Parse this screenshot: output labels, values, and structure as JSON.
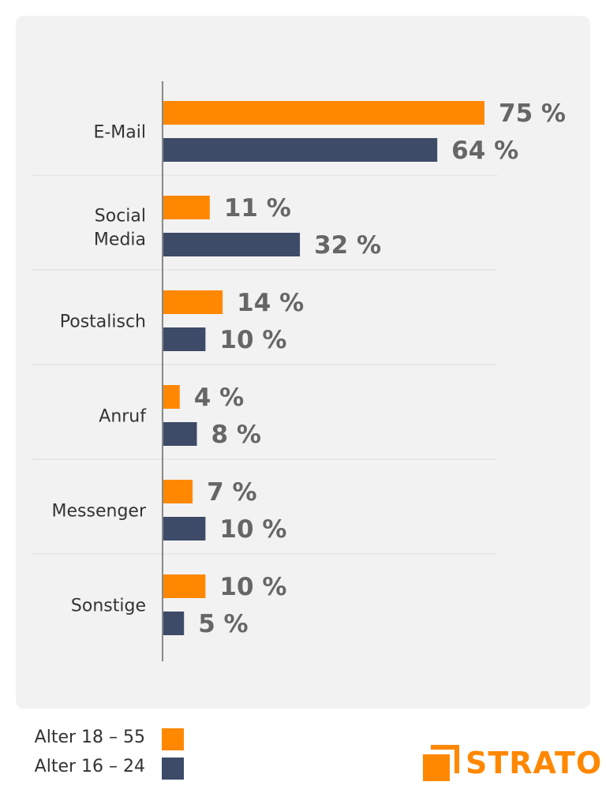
{
  "chart_data": {
    "type": "bar",
    "orientation": "horizontal",
    "categories": [
      "E-Mail",
      "Social Media",
      "Postalisch",
      "Anruf",
      "Messenger",
      "Sonstige"
    ],
    "series": [
      {
        "name": "Alter 18 – 55",
        "color": "#ff8800",
        "values": [
          75,
          11,
          14,
          4,
          7,
          10
        ]
      },
      {
        "name": "Alter 16 – 24",
        "color": "#3d4b68",
        "values": [
          64,
          32,
          10,
          8,
          10,
          5
        ]
      }
    ],
    "value_suffix": " %",
    "xlim": [
      0,
      80
    ],
    "grid": "horizontal separators",
    "legend_position": "bottom-left"
  },
  "brand": {
    "name": "STRATO",
    "color": "#ff8800",
    "icon": "strato-logo-icon"
  }
}
